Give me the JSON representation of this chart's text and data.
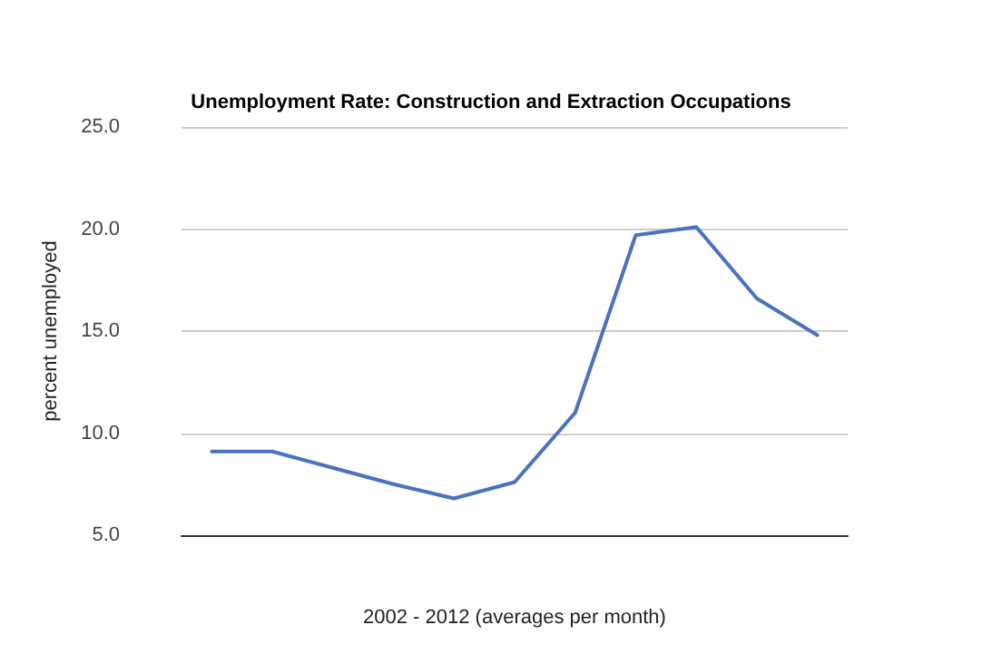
{
  "chart_data": {
    "type": "line",
    "title": "Unemployment Rate: Construction and Extraction Occupations",
    "xlabel": "2002 - 2012 (averages per month)",
    "ylabel": "percent unemployed",
    "categories": [
      null,
      null,
      null,
      null,
      null,
      null,
      null,
      null,
      null,
      null,
      null
    ],
    "series": [
      {
        "color": "#4a72c0",
        "values": [
          9.1,
          9.1,
          8.3,
          7.5,
          6.8,
          7.6,
          11.0,
          19.7,
          20.1,
          16.6,
          14.8
        ]
      }
    ],
    "ylim": [
      5,
      25
    ],
    "yticks": [
      {
        "value": 5,
        "label": "5.0"
      },
      {
        "value": 10,
        "label": "10.0"
      },
      {
        "value": 15,
        "label": "15.0"
      },
      {
        "value": 20,
        "label": "20.0"
      },
      {
        "value": 25,
        "label": "25.0"
      }
    ],
    "grid": "y",
    "marker": "none",
    "line_style": "solid"
  }
}
